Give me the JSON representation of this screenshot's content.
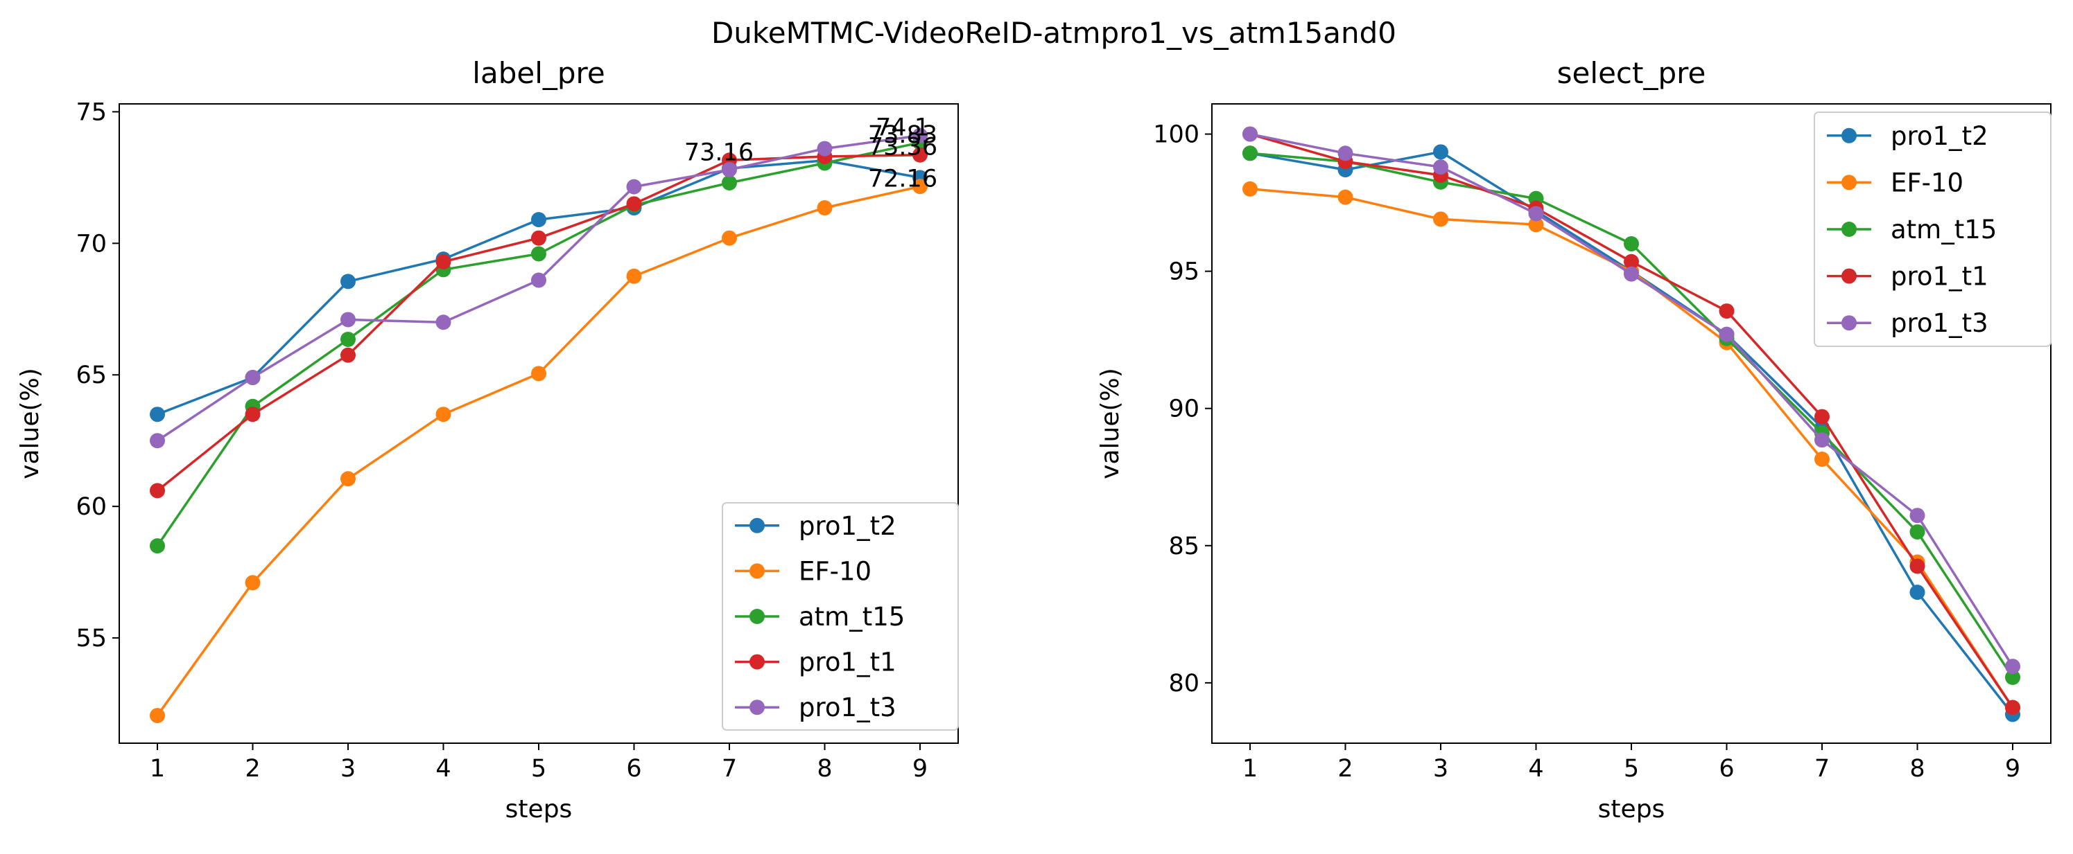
{
  "figure": {
    "suptitle": "DukeMTMC-VideoReID-atmpro1_vs_atm15and0"
  },
  "chart_data": [
    {
      "type": "line",
      "title": "label_pre",
      "xlabel": "steps",
      "ylabel": "value(%)",
      "x": [
        1,
        2,
        3,
        4,
        5,
        6,
        7,
        8,
        9
      ],
      "xlim": [
        0.6,
        9.4
      ],
      "ylim": [
        51.0,
        75.3
      ],
      "yticks": [
        55,
        60,
        65,
        70,
        75
      ],
      "legend": "lower-right",
      "grid": false,
      "series": [
        {
          "name": "pro1_t2",
          "color": "#1f77b4",
          "values": [
            63.5,
            64.9,
            68.55,
            69.4,
            70.9,
            71.35,
            72.85,
            73.15,
            72.5
          ]
        },
        {
          "name": "EF-10",
          "color": "#ff7f0e",
          "values": [
            52.05,
            57.1,
            61.05,
            63.5,
            65.05,
            68.75,
            70.2,
            71.35,
            72.16
          ]
        },
        {
          "name": "atm_t15",
          "color": "#2ca02c",
          "values": [
            58.5,
            63.8,
            66.35,
            69.0,
            69.6,
            71.45,
            72.3,
            73.05,
            73.83
          ]
        },
        {
          "name": "pro1_t1",
          "color": "#d62728",
          "values": [
            60.6,
            63.5,
            65.75,
            69.3,
            70.2,
            71.5,
            73.16,
            73.3,
            73.36
          ]
        },
        {
          "name": "pro1_t3",
          "color": "#9467bd",
          "values": [
            62.5,
            64.9,
            67.1,
            67.0,
            68.6,
            72.15,
            72.8,
            73.6,
            74.1
          ]
        }
      ],
      "annotations": [
        {
          "text": "73.16",
          "x": 7,
          "y": 73.16
        },
        {
          "text": "74.1",
          "x": 9,
          "y": 74.1
        },
        {
          "text": "73.83",
          "x": 9,
          "y": 73.83
        },
        {
          "text": "73.36",
          "x": 9,
          "y": 73.36
        },
        {
          "text": "72.16",
          "x": 9,
          "y": 72.16
        }
      ]
    },
    {
      "type": "line",
      "title": "select_pre",
      "xlabel": "steps",
      "ylabel": "value(%)",
      "x": [
        1,
        2,
        3,
        4,
        5,
        6,
        7,
        8,
        9
      ],
      "xlim": [
        0.6,
        9.4
      ],
      "ylim": [
        77.8,
        101.1
      ],
      "yticks": [
        80,
        85,
        90,
        95,
        100
      ],
      "legend": "top-right",
      "grid": false,
      "series": [
        {
          "name": "pro1_t2",
          "color": "#1f77b4",
          "values": [
            99.3,
            98.7,
            99.35,
            97.2,
            95.0,
            92.7,
            89.3,
            83.3,
            78.85
          ]
        },
        {
          "name": "EF-10",
          "color": "#ff7f0e",
          "values": [
            98.0,
            97.7,
            96.9,
            96.7,
            95.0,
            92.4,
            88.15,
            84.4,
            79.1
          ]
        },
        {
          "name": "atm_t15",
          "color": "#2ca02c",
          "values": [
            99.3,
            99.0,
            98.25,
            97.65,
            96.0,
            92.55,
            89.1,
            85.5,
            80.2
          ]
        },
        {
          "name": "pro1_t1",
          "color": "#d62728",
          "values": [
            100.0,
            99.0,
            98.5,
            97.3,
            95.35,
            93.55,
            89.7,
            84.25,
            79.1
          ]
        },
        {
          "name": "pro1_t3",
          "color": "#9467bd",
          "values": [
            100.0,
            99.3,
            98.8,
            97.1,
            94.9,
            92.7,
            88.85,
            86.1,
            80.6
          ]
        }
      ]
    }
  ]
}
